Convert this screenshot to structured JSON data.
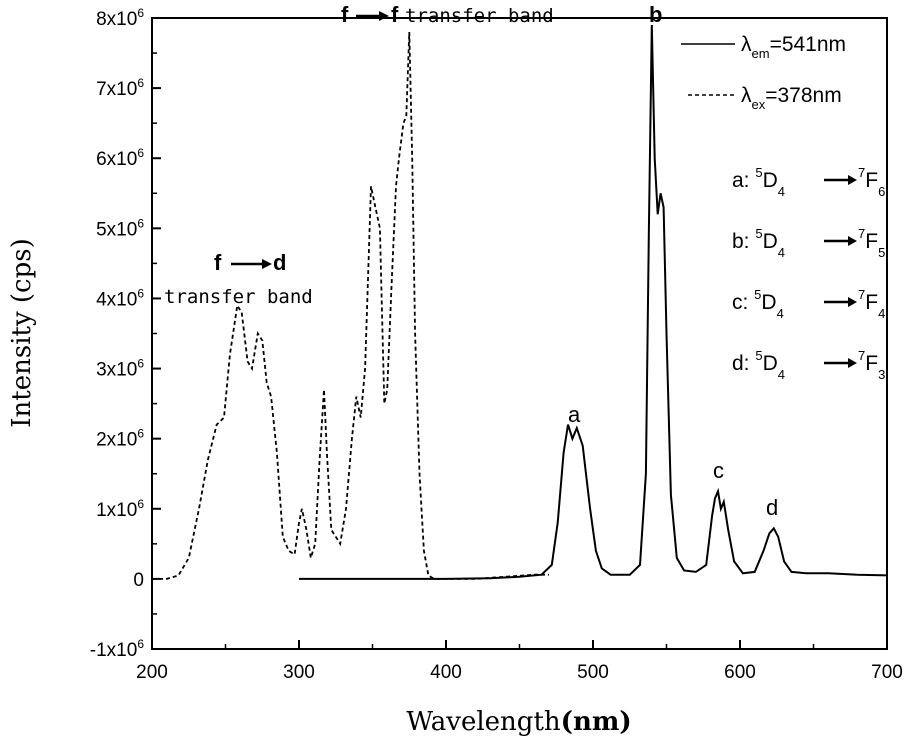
{
  "chart_data": {
    "type": "line",
    "title": "",
    "xlabel": "Wavelength",
    "xlabel_unit": "(nm)",
    "ylabel": "Intensity (cps)",
    "xlim": [
      200,
      700
    ],
    "ylim": [
      -1000000,
      8000000
    ],
    "x_ticks": [
      200,
      300,
      400,
      500,
      600,
      700
    ],
    "x_tick_labels": [
      "200",
      "300",
      "400",
      "500",
      "600",
      "700"
    ],
    "y_ticks": [
      -1000000,
      0,
      1000000,
      2000000,
      3000000,
      4000000,
      5000000,
      6000000,
      7000000,
      8000000
    ],
    "y_tick_labels": [
      {
        "coef": "-1x10",
        "exp": "6"
      },
      {
        "coef": "0",
        "exp": ""
      },
      {
        "coef": "1x10",
        "exp": "6"
      },
      {
        "coef": "2x10",
        "exp": "6"
      },
      {
        "coef": "3x10",
        "exp": "6"
      },
      {
        "coef": "4x10",
        "exp": "6"
      },
      {
        "coef": "5x10",
        "exp": "6"
      },
      {
        "coef": "6x10",
        "exp": "6"
      },
      {
        "coef": "7x10",
        "exp": "6"
      },
      {
        "coef": "8x10",
        "exp": "6"
      }
    ],
    "grid": false,
    "legend_position": "top-right",
    "series": [
      {
        "name_prefix": "λ",
        "name_sub": "em",
        "name_rest": "=541nm",
        "style": "solid",
        "points": [
          [
            300,
            0
          ],
          [
            350,
            0
          ],
          [
            400,
            0
          ],
          [
            430,
            10000
          ],
          [
            450,
            30000
          ],
          [
            465,
            60000
          ],
          [
            472,
            200000
          ],
          [
            476,
            800000
          ],
          [
            480,
            1800000
          ],
          [
            483,
            2200000
          ],
          [
            486,
            2000000
          ],
          [
            489,
            2150000
          ],
          [
            493,
            1900000
          ],
          [
            498,
            1000000
          ],
          [
            502,
            400000
          ],
          [
            506,
            150000
          ],
          [
            512,
            60000
          ],
          [
            525,
            60000
          ],
          [
            532,
            200000
          ],
          [
            536,
            1500000
          ],
          [
            538,
            5000000
          ],
          [
            540,
            7900000
          ],
          [
            542,
            6000000
          ],
          [
            544,
            5200000
          ],
          [
            546,
            5500000
          ],
          [
            548,
            5300000
          ],
          [
            550,
            3500000
          ],
          [
            553,
            1200000
          ],
          [
            557,
            300000
          ],
          [
            562,
            120000
          ],
          [
            570,
            100000
          ],
          [
            577,
            200000
          ],
          [
            581,
            900000
          ],
          [
            583,
            1150000
          ],
          [
            585,
            1250000
          ],
          [
            587,
            1000000
          ],
          [
            589,
            1100000
          ],
          [
            592,
            700000
          ],
          [
            596,
            250000
          ],
          [
            602,
            80000
          ],
          [
            610,
            100000
          ],
          [
            616,
            400000
          ],
          [
            620,
            650000
          ],
          [
            623,
            720000
          ],
          [
            626,
            600000
          ],
          [
            630,
            250000
          ],
          [
            635,
            100000
          ],
          [
            645,
            80000
          ],
          [
            660,
            80000
          ],
          [
            680,
            60000
          ],
          [
            700,
            50000
          ]
        ]
      },
      {
        "name_prefix": "λ",
        "name_sub": "ex",
        "name_rest": "=378nm",
        "style": "dashed",
        "points": [
          [
            200,
            0
          ],
          [
            210,
            0
          ],
          [
            218,
            50000
          ],
          [
            225,
            300000
          ],
          [
            232,
            1000000
          ],
          [
            238,
            1700000
          ],
          [
            244,
            2200000
          ],
          [
            249,
            2300000
          ],
          [
            253,
            3200000
          ],
          [
            258,
            3900000
          ],
          [
            261,
            3800000
          ],
          [
            265,
            3100000
          ],
          [
            268,
            3000000
          ],
          [
            272,
            3500000
          ],
          [
            275,
            3400000
          ],
          [
            278,
            2800000
          ],
          [
            281,
            2600000
          ],
          [
            285,
            1800000
          ],
          [
            289,
            600000
          ],
          [
            293,
            400000
          ],
          [
            297,
            350000
          ],
          [
            300,
            800000
          ],
          [
            302,
            1000000
          ],
          [
            305,
            700000
          ],
          [
            308,
            300000
          ],
          [
            311,
            500000
          ],
          [
            314,
            1700000
          ],
          [
            317,
            2700000
          ],
          [
            319,
            1800000
          ],
          [
            322,
            700000
          ],
          [
            325,
            600000
          ],
          [
            328,
            500000
          ],
          [
            332,
            1000000
          ],
          [
            336,
            2000000
          ],
          [
            339,
            2600000
          ],
          [
            342,
            2300000
          ],
          [
            345,
            3000000
          ],
          [
            349,
            5600000
          ],
          [
            352,
            5300000
          ],
          [
            355,
            5000000
          ],
          [
            358,
            2500000
          ],
          [
            360,
            2700000
          ],
          [
            363,
            4200000
          ],
          [
            366,
            5600000
          ],
          [
            368,
            6000000
          ],
          [
            371,
            6500000
          ],
          [
            373,
            6600000
          ],
          [
            375,
            7800000
          ],
          [
            377,
            6000000
          ],
          [
            379,
            3500000
          ],
          [
            382,
            1500000
          ],
          [
            385,
            400000
          ],
          [
            388,
            50000
          ],
          [
            392,
            0
          ],
          [
            400,
            0
          ],
          [
            420,
            0
          ],
          [
            440,
            30000
          ],
          [
            460,
            60000
          ],
          [
            470,
            60000
          ]
        ]
      }
    ],
    "annotations": {
      "fd_line1_a": "f",
      "fd_line1_b": "d",
      "fd_line2": "transfer band",
      "ff_a": "f",
      "ff_b": "f",
      "ff_text": "transfer band",
      "peaks": [
        "a",
        "b",
        "c",
        "d"
      ]
    },
    "transitions": [
      {
        "label": "a:",
        "upper_sup": "5",
        "upper": "D",
        "upper_sub": "4",
        "lower_sup": "7",
        "lower": "F",
        "lower_sub": "6"
      },
      {
        "label": "b:",
        "upper_sup": "5",
        "upper": "D",
        "upper_sub": "4",
        "lower_sup": "7",
        "lower": "F",
        "lower_sub": "5"
      },
      {
        "label": "c:",
        "upper_sup": "5",
        "upper": "D",
        "upper_sub": "4",
        "lower_sup": "7",
        "lower": "F",
        "lower_sub": "4"
      },
      {
        "label": "d:",
        "upper_sup": "5",
        "upper": "D",
        "upper_sub": "4",
        "lower_sup": "7",
        "lower": "F",
        "lower_sub": "3"
      }
    ]
  }
}
